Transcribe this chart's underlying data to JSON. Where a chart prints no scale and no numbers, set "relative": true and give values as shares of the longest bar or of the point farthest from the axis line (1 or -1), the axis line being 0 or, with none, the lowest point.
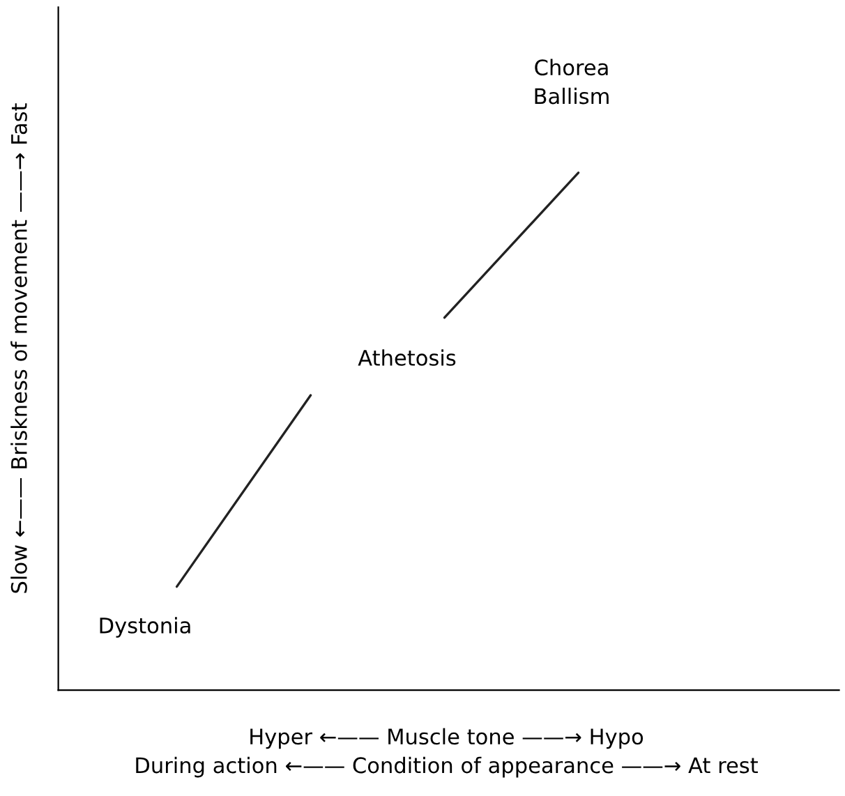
{
  "chart_data": {
    "type": "line",
    "relative": true,
    "categories": [
      null,
      null,
      null,
      null
    ],
    "series": [
      {
        "color": "#222222",
        "values": [
          0.2,
          0.57,
          null,
          null
        ]
      },
      {
        "color": "#222222",
        "values": [
          null,
          null,
          0.72,
          1
        ]
      }
    ],
    "annotations": [
      "Dystonia",
      "Athetosis",
      "Chorea\nBallism",
      "Slow ←—— Briskness of movement ——→ Fast",
      "Hyper ←—— Muscle tone ——→ Hypo\nDuring action ←—— Condition of appearance ——→ At rest"
    ],
    "marker": "none",
    "line_style": "solid"
  }
}
